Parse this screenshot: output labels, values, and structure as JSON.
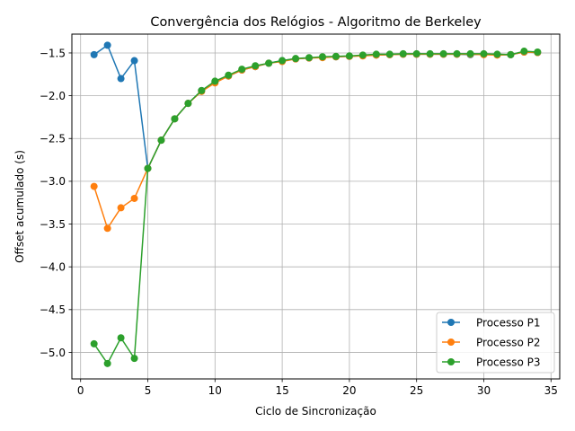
{
  "chart_data": {
    "type": "line",
    "title": "Convergência dos Relógios - Algoritmo de Berkeley",
    "xlabel": "Ciclo de Sincronização",
    "ylabel": "Offset acumulado (s)",
    "xlim": [
      -0.65,
      35.65
    ],
    "ylim": [
      -5.31,
      -1.28
    ],
    "xticks": [
      0,
      5,
      10,
      15,
      20,
      25,
      30,
      35
    ],
    "xtick_labels": [
      "0",
      "5",
      "10",
      "15",
      "20",
      "25",
      "30",
      "35"
    ],
    "yticks": [
      -5.0,
      -4.5,
      -4.0,
      -3.5,
      -3.0,
      -2.5,
      -2.0,
      -1.5
    ],
    "ytick_labels": [
      "−5.0",
      "−4.5",
      "−4.0",
      "−3.5",
      "−3.0",
      "−2.5",
      "−2.0",
      "−1.5"
    ],
    "grid": true,
    "legend_position": "lower-right",
    "x": [
      1,
      2,
      3,
      4,
      5,
      6,
      7,
      8,
      9,
      10,
      11,
      12,
      13,
      14,
      15,
      16,
      17,
      18,
      19,
      20,
      21,
      22,
      23,
      24,
      25,
      26,
      27,
      28,
      29,
      30,
      31,
      32,
      33,
      34
    ],
    "series": [
      {
        "name": "Processo P1",
        "color": "#1f77b4",
        "values": [
          -1.52,
          -1.41,
          -1.8,
          -1.59,
          -2.85,
          -2.52,
          -2.27,
          -2.09,
          -1.94,
          -1.84,
          -1.77,
          -1.7,
          -1.66,
          -1.62,
          -1.59,
          -1.57,
          -1.56,
          -1.55,
          -1.545,
          -1.54,
          -1.53,
          -1.525,
          -1.52,
          -1.515,
          -1.515,
          -1.515,
          -1.515,
          -1.515,
          -1.52,
          -1.515,
          -1.52,
          -1.52,
          -1.49,
          -1.495
        ]
      },
      {
        "name": "Processo P2",
        "color": "#ff7f0e",
        "values": [
          -3.06,
          -3.55,
          -3.31,
          -3.2,
          -2.85,
          -2.52,
          -2.27,
          -2.09,
          -1.95,
          -1.85,
          -1.77,
          -1.7,
          -1.66,
          -1.62,
          -1.6,
          -1.57,
          -1.56,
          -1.555,
          -1.545,
          -1.54,
          -1.535,
          -1.525,
          -1.52,
          -1.515,
          -1.515,
          -1.515,
          -1.515,
          -1.515,
          -1.515,
          -1.52,
          -1.525,
          -1.52,
          -1.49,
          -1.495
        ]
      },
      {
        "name": "Processo P3",
        "color": "#2ca02c",
        "values": [
          -4.9,
          -5.13,
          -4.83,
          -5.07,
          -2.85,
          -2.52,
          -2.27,
          -2.09,
          -1.94,
          -1.83,
          -1.76,
          -1.69,
          -1.65,
          -1.62,
          -1.59,
          -1.565,
          -1.555,
          -1.545,
          -1.54,
          -1.535,
          -1.525,
          -1.515,
          -1.515,
          -1.51,
          -1.51,
          -1.51,
          -1.51,
          -1.51,
          -1.51,
          -1.51,
          -1.515,
          -1.52,
          -1.48,
          -1.49
        ]
      }
    ]
  }
}
